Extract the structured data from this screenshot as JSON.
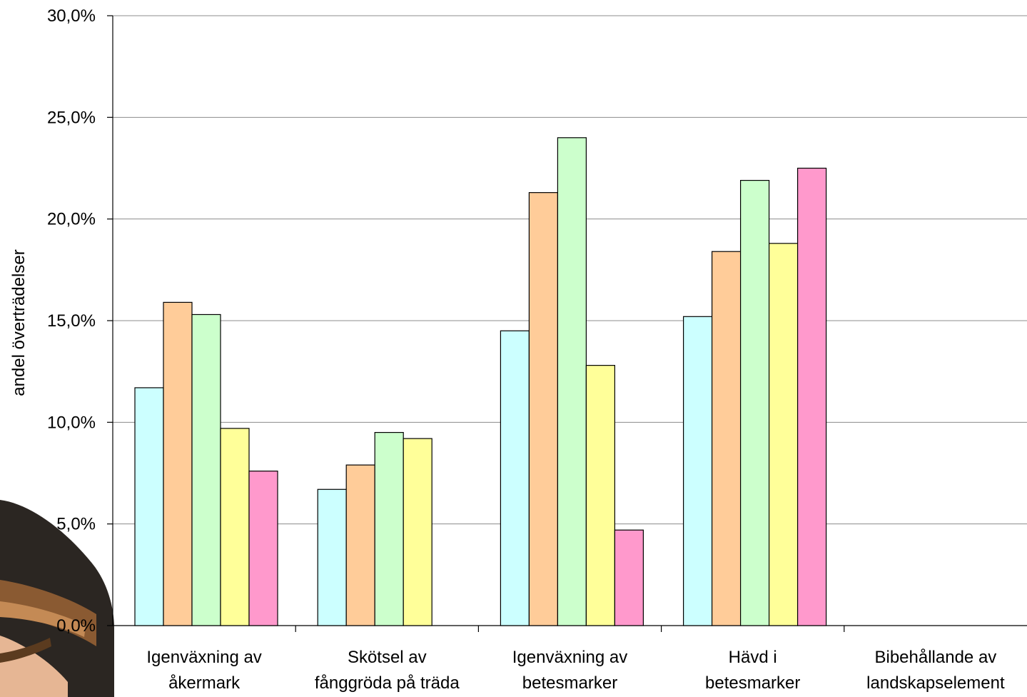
{
  "chart_data": {
    "type": "bar",
    "title": "",
    "xlabel": "",
    "ylabel": "andel överträdelser",
    "ylim": [
      0,
      0.3
    ],
    "y_ticks": [
      "0,0%",
      "5,0%",
      "10,0%",
      "15,0%",
      "20,0%",
      "25,0%",
      "30,0%"
    ],
    "grid": true,
    "legend": "none",
    "categories": [
      [
        "Igenväxning av",
        "åkermark"
      ],
      [
        "Skötsel av",
        "fånggröda på träda"
      ],
      [
        "Igenväxning av",
        "betesmarker"
      ],
      [
        "Hävd i",
        "betesmarker"
      ],
      [
        "Bibehållande av",
        "landskapselement"
      ]
    ],
    "series": [
      {
        "color": "#ccffff",
        "values": [
          0.117,
          0.067,
          0.145,
          0.152,
          null
        ]
      },
      {
        "color": "#ffcc99",
        "values": [
          0.159,
          0.079,
          0.213,
          0.184,
          null
        ]
      },
      {
        "color": "#ccffcc",
        "values": [
          0.153,
          0.095,
          0.24,
          0.219,
          null
        ]
      },
      {
        "color": "#ffff99",
        "values": [
          0.097,
          0.092,
          0.128,
          0.188,
          null
        ]
      },
      {
        "color": "#ff99cc",
        "values": [
          0.076,
          null,
          0.047,
          0.225,
          null
        ]
      }
    ]
  }
}
